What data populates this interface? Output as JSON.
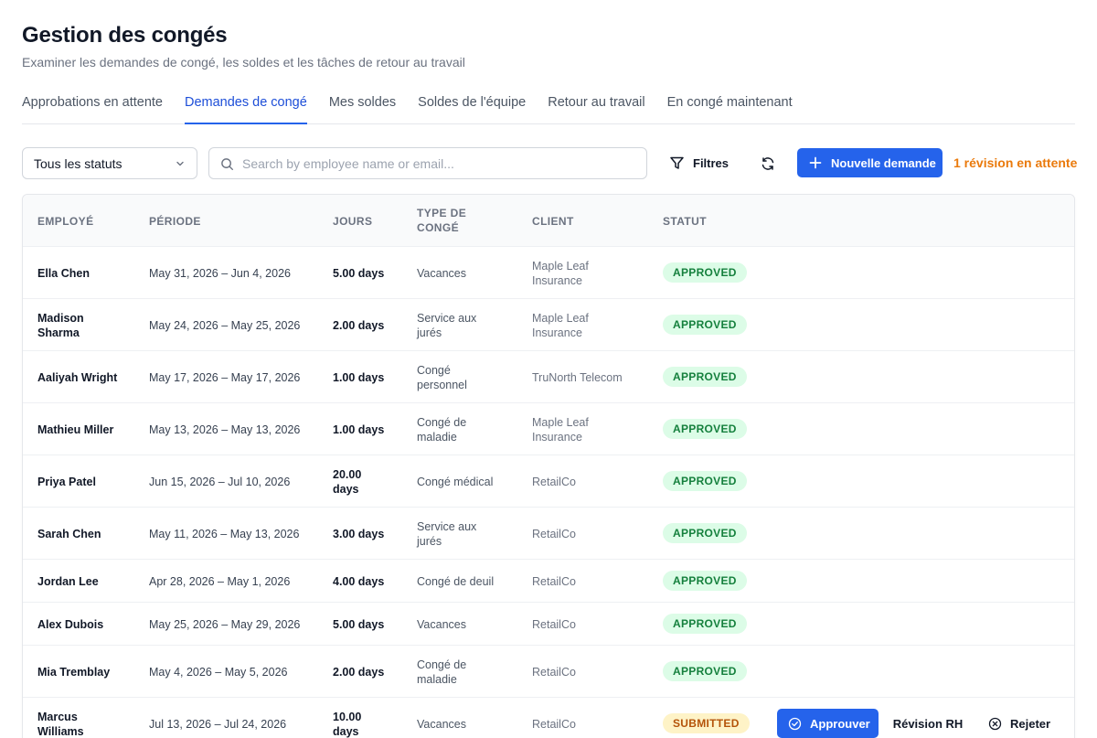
{
  "header": {
    "title": "Gestion des congés",
    "subtitle": "Examiner les demandes de congé, les soldes et les tâches de retour au travail"
  },
  "tabs": [
    {
      "label": "Approbations en attente",
      "active": false
    },
    {
      "label": "Demandes de congé",
      "active": true
    },
    {
      "label": "Mes soldes",
      "active": false
    },
    {
      "label": "Soldes de l'équipe",
      "active": false
    },
    {
      "label": "Retour au travail",
      "active": false
    },
    {
      "label": "En congé maintenant",
      "active": false
    }
  ],
  "toolbar": {
    "status_select_value": "Tous les statuts",
    "search_placeholder": "Search by employee name or email...",
    "search_value": "",
    "filters_label": "Filtres",
    "new_request_label": "Nouvelle demande",
    "pending_review_text": "1 révision en attente"
  },
  "table": {
    "columns": [
      "EMPLOYÉ",
      "PÉRIODE",
      "JOURS",
      "TYPE DE CONGÉ",
      "CLIENT",
      "STATUT"
    ],
    "rows": [
      {
        "employee": "Ella Chen",
        "period": "May 31, 2026 – Jun 4, 2026",
        "days": "5.00 days",
        "type": "Vacances",
        "client": "Maple Leaf Insurance",
        "status": "APPROVED"
      },
      {
        "employee": "Madison Sharma",
        "period": "May 24, 2026 – May 25, 2026",
        "days": "2.00 days",
        "type": "Service aux jurés",
        "client": "Maple Leaf Insurance",
        "status": "APPROVED"
      },
      {
        "employee": "Aaliyah Wright",
        "period": "May 17, 2026 – May 17, 2026",
        "days": "1.00 days",
        "type": "Congé personnel",
        "client": "TruNorth Telecom",
        "status": "APPROVED"
      },
      {
        "employee": "Mathieu Miller",
        "period": "May 13, 2026 – May 13, 2026",
        "days": "1.00 days",
        "type": "Congé de maladie",
        "client": "Maple Leaf Insurance",
        "status": "APPROVED"
      },
      {
        "employee": "Priya Patel",
        "period": "Jun 15, 2026 – Jul 10, 2026",
        "days": "20.00 days",
        "type": "Congé médical",
        "client": "RetailCo",
        "status": "APPROVED"
      },
      {
        "employee": "Sarah Chen",
        "period": "May 11, 2026 – May 13, 2026",
        "days": "3.00 days",
        "type": "Service aux jurés",
        "client": "RetailCo",
        "status": "APPROVED"
      },
      {
        "employee": "Jordan Lee",
        "period": "Apr 28, 2026 – May 1, 2026",
        "days": "4.00 days",
        "type": "Congé de deuil",
        "client": "RetailCo",
        "status": "APPROVED"
      },
      {
        "employee": "Alex Dubois",
        "period": "May 25, 2026 – May 29, 2026",
        "days": "5.00 days",
        "type": "Vacances",
        "client": "RetailCo",
        "status": "APPROVED"
      },
      {
        "employee": "Mia Tremblay",
        "period": "May 4, 2026 – May 5, 2026",
        "days": "2.00 days",
        "type": "Congé de maladie",
        "client": "RetailCo",
        "status": "APPROVED"
      },
      {
        "employee": "Marcus Williams",
        "period": "Jul 13, 2026 – Jul 24, 2026",
        "days": "10.00 days",
        "type": "Vacances",
        "client": "RetailCo",
        "status": "SUBMITTED"
      }
    ],
    "row_actions": {
      "approve_label": "Approuver",
      "hr_review_label": "Révision RH",
      "reject_label": "Rejeter"
    }
  },
  "colors": {
    "accent": "#2563eb",
    "approved_bg": "#dcfce7",
    "approved_text": "#15803d",
    "submitted_bg": "#fef3c7",
    "submitted_text": "#b45309",
    "pending_text": "#ea7a0c"
  },
  "icons": {
    "status_select": "chevron-down-icon",
    "search": "search-icon",
    "filters": "filter-icon",
    "refresh": "refresh-icon",
    "new_request": "plus-icon",
    "approve": "check-circle-icon",
    "reject": "x-circle-icon"
  }
}
